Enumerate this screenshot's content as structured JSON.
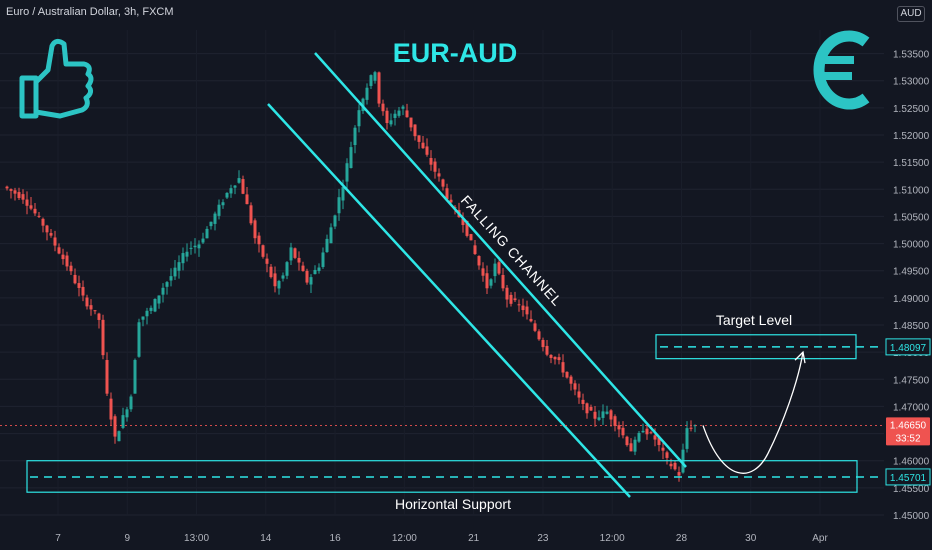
{
  "header": {
    "symbol_title": "Euro / Australian Dollar, 3h, FXCM",
    "currency": "AUD"
  },
  "annotations": {
    "pair_title": "EUR-AUD",
    "channel_label": "FALLING CHANNEL",
    "target_label": "Target Level",
    "support_label": "Horizontal Support",
    "thumbs_up_icon": "thumbs-up-icon",
    "euro_icon": "euro-icon"
  },
  "colors": {
    "accent": "#2ee6e6",
    "bull": "#26a69a",
    "bear": "#ef5350",
    "background": "#131722"
  },
  "chart_data": {
    "type": "candlestick",
    "ylim": [
      1.45,
      1.5375
    ],
    "y_ticks": [
      "1.53500",
      "1.53000",
      "1.52500",
      "1.52000",
      "1.51500",
      "1.51000",
      "1.50500",
      "1.50000",
      "1.49500",
      "1.49000",
      "1.48500",
      "1.48000",
      "1.47500",
      "1.47000",
      "1.46500",
      "1.46000",
      "1.45500",
      "1.45000"
    ],
    "x_ticks": [
      "7",
      "9",
      "13:00",
      "14",
      "16",
      "12:00",
      "21",
      "23",
      "12:00",
      "28",
      "30",
      "Apr"
    ],
    "price_labels": [
      {
        "value": "1.48097",
        "style": "level"
      },
      {
        "value": "1.46650",
        "style": "current",
        "countdown": "33:52"
      },
      {
        "value": "1.45701",
        "style": "level"
      }
    ],
    "levels": {
      "target": 1.48097,
      "support": 1.45701,
      "current": 1.4665
    },
    "target_zone": [
      1.4788,
      1.4832
    ],
    "support_zone": [
      1.4542,
      1.46
    ],
    "close_path": [
      [
        0,
        1.5105
      ],
      [
        5,
        1.5085
      ],
      [
        10,
        1.5035
      ],
      [
        16,
        1.496
      ],
      [
        20,
        1.49
      ],
      [
        24,
        1.486
      ],
      [
        26,
        1.472
      ],
      [
        28,
        1.464
      ],
      [
        30,
        1.468
      ],
      [
        32,
        1.472
      ],
      [
        34,
        1.486
      ],
      [
        37,
        1.488
      ],
      [
        40,
        1.492
      ],
      [
        43,
        1.495
      ],
      [
        46,
        1.499
      ],
      [
        49,
        1.5
      ],
      [
        52,
        1.504
      ],
      [
        55,
        1.508
      ],
      [
        57,
        1.5105
      ],
      [
        59,
        1.512
      ],
      [
        61,
        1.507
      ],
      [
        63,
        1.501
      ],
      [
        66,
        1.496
      ],
      [
        68,
        1.492
      ],
      [
        70,
        1.494
      ],
      [
        72,
        1.499
      ],
      [
        74,
        1.496
      ],
      [
        76,
        1.493
      ],
      [
        79,
        1.496
      ],
      [
        82,
        1.503
      ],
      [
        85,
        1.511
      ],
      [
        87,
        1.518
      ],
      [
        89,
        1.525
      ],
      [
        91,
        1.529
      ],
      [
        93,
        1.532
      ],
      [
        94,
        1.526
      ],
      [
        96,
        1.522
      ],
      [
        98,
        1.524
      ],
      [
        100,
        1.525
      ],
      [
        103,
        1.52
      ],
      [
        106,
        1.516
      ],
      [
        109,
        1.512
      ],
      [
        112,
        1.507
      ],
      [
        115,
        1.504
      ],
      [
        118,
        1.498
      ],
      [
        121,
        1.492
      ],
      [
        123,
        1.496
      ],
      [
        126,
        1.49
      ],
      [
        130,
        1.488
      ],
      [
        133,
        1.484
      ],
      [
        136,
        1.48
      ],
      [
        139,
        1.478
      ],
      [
        142,
        1.474
      ],
      [
        145,
        1.47
      ],
      [
        148,
        1.468
      ],
      [
        151,
        1.469
      ],
      [
        154,
        1.466
      ],
      [
        157,
        1.462
      ],
      [
        160,
        1.466
      ],
      [
        163,
        1.464
      ],
      [
        166,
        1.46
      ],
      [
        169,
        1.4575
      ],
      [
        171,
        1.466
      ],
      [
        173,
        1.4665
      ]
    ],
    "projection": {
      "from": 1.4665,
      "low": 1.4595,
      "to": 1.48
    }
  }
}
